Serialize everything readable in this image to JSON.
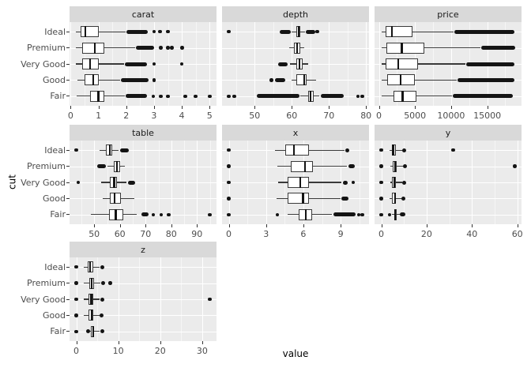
{
  "figure": {
    "xlabel": "value",
    "ylabel": "cut",
    "colors": {
      "strip_bg": "#d9d9d9",
      "panel_bg": "#ebebeb",
      "gridline": "#ffffff",
      "box_fill": "#ffffff",
      "box_line": "#3a3a3a",
      "point": "#141414",
      "tick_text": "#4d4d4d",
      "strip_text": "#1a1a1a"
    }
  },
  "chart_data": {
    "type": "boxplot",
    "title": "",
    "xlabel": "value",
    "ylabel": "cut",
    "legend": "none",
    "grid": "on",
    "categories": [
      "Ideal",
      "Premium",
      "Very Good",
      "Good",
      "Fair"
    ],
    "facets": [
      {
        "label": "carat",
        "row": 0,
        "col": 0,
        "axis": {
          "min": -0.04,
          "max": 5.25,
          "ticks": [
            0,
            1,
            2,
            3,
            4,
            5
          ]
        },
        "boxes": [
          {
            "cut": "Ideal",
            "whisker_low": 0.2,
            "q1": 0.35,
            "median": 0.54,
            "q3": 1.01,
            "whisker_high": 1.98,
            "outlier_bands": [
              [
                2.01,
                2.79
              ]
            ],
            "outliers": [
              3.0,
              3.22,
              3.5
            ]
          },
          {
            "cut": "Premium",
            "whisker_low": 0.2,
            "q1": 0.41,
            "median": 0.86,
            "q3": 1.2,
            "whisker_high": 2.32,
            "outlier_bands": [
              [
                2.36,
                3.01
              ]
            ],
            "outliers": [
              3.24,
              3.5,
              3.65,
              4.01
            ]
          },
          {
            "cut": "Very Good",
            "whisker_low": 0.2,
            "q1": 0.41,
            "median": 0.71,
            "q3": 1.02,
            "whisker_high": 1.93,
            "outlier_bands": [
              [
                1.96,
                2.74
              ]
            ],
            "outliers": [
              3.0,
              4.0
            ]
          },
          {
            "cut": "Good",
            "whisker_low": 0.23,
            "q1": 0.5,
            "median": 0.82,
            "q3": 1.01,
            "whisker_high": 1.77,
            "outlier_bands": [
              [
                1.8,
                2.8
              ]
            ],
            "outliers": [
              3.01
            ]
          },
          {
            "cut": "Fair",
            "whisker_low": 0.22,
            "q1": 0.7,
            "median": 1.0,
            "q3": 1.2,
            "whisker_high": 1.95,
            "outlier_bands": [
              [
                1.99,
                2.75
              ]
            ],
            "outliers": [
              2.98,
              3.25,
              3.5,
              4.13,
              4.5,
              5.01
            ]
          }
        ]
      },
      {
        "label": "depth",
        "row": 0,
        "col": 1,
        "axis": {
          "min": 41.2,
          "max": 80.8,
          "ticks": [
            50,
            60,
            70,
            80
          ]
        },
        "boxes": [
          {
            "cut": "Ideal",
            "whisker_low": 60.0,
            "q1": 61.3,
            "median": 61.8,
            "q3": 62.2,
            "whisker_high": 63.5,
            "outlier_bands": [
              [
                56.8,
                59.8
              ],
              [
                63.8,
                66.3
              ]
            ],
            "outliers": [
              43.0,
              66.9
            ]
          },
          {
            "cut": "Premium",
            "whisker_low": 59.3,
            "q1": 60.5,
            "median": 61.4,
            "q3": 62.2,
            "whisker_high": 63.4,
            "outlier_bands": [],
            "outliers": []
          },
          {
            "cut": "Very Good",
            "whisker_low": 59.4,
            "q1": 61.1,
            "median": 62.1,
            "q3": 62.9,
            "whisker_high": 64.4,
            "outlier_bands": [
              [
                56.4,
                58.8
              ]
            ],
            "outliers": []
          },
          {
            "cut": "Good",
            "whisker_low": 59.9,
            "q1": 61.3,
            "median": 63.4,
            "q3": 64.0,
            "whisker_high": 66.6,
            "outlier_bands": [
              [
                55.5,
                58.2
              ]
            ],
            "outliers": [
              54.5
            ]
          },
          {
            "cut": "Fair",
            "whisker_low": 62.2,
            "q1": 64.4,
            "median": 65.0,
            "q3": 65.9,
            "whisker_high": 67.3,
            "outlier_bands": [
              [
                50.5,
                62.0
              ],
              [
                67.7,
                74.0
              ]
            ],
            "outliers": [
              43.0,
              44.5,
              77.8,
              79.0
            ]
          }
        ]
      },
      {
        "label": "price",
        "row": 0,
        "col": 2,
        "axis": {
          "min": -600,
          "max": 19750,
          "ticks": [
            0,
            5000,
            10000,
            15000
          ]
        },
        "boxes": [
          {
            "cut": "Ideal",
            "whisker_low": 326,
            "q1": 878,
            "median": 1810,
            "q3": 4678,
            "whisker_high": 10300,
            "outlier_bands": [
              [
                10400,
                18800
              ]
            ],
            "outliers": []
          },
          {
            "cut": "Premium",
            "whisker_low": 326,
            "q1": 1046,
            "median": 3185,
            "q3": 6296,
            "whisker_high": 14100,
            "outlier_bands": [
              [
                14200,
                18823
              ]
            ],
            "outliers": []
          },
          {
            "cut": "Very Good",
            "whisker_low": 336,
            "q1": 912,
            "median": 2648,
            "q3": 5373,
            "whisker_high": 11950,
            "outlier_bands": [
              [
                12050,
                18818
              ]
            ],
            "outliers": []
          },
          {
            "cut": "Good",
            "whisker_low": 327,
            "q1": 1145,
            "median": 3050,
            "q3": 5028,
            "whisker_high": 10800,
            "outlier_bands": [
              [
                10900,
                18788
              ]
            ],
            "outliers": []
          },
          {
            "cut": "Fair",
            "whisker_low": 337,
            "q1": 2050,
            "median": 3282,
            "q3": 5206,
            "whisker_high": 10080,
            "outlier_bands": [
              [
                10180,
                18574
              ]
            ],
            "outliers": []
          }
        ]
      },
      {
        "label": "table",
        "row": 1,
        "col": 0,
        "axis": {
          "min": 40.4,
          "max": 97.6,
          "ticks": [
            50,
            60,
            70,
            80,
            90
          ]
        },
        "boxes": [
          {
            "cut": "Ideal",
            "whisker_low": 52.0,
            "q1": 54.5,
            "median": 56.0,
            "q3": 57.0,
            "whisker_high": 59.5,
            "outlier_bands": [
              [
                60.0,
                63.4
              ]
            ],
            "outliers": [
              43.0
            ]
          },
          {
            "cut": "Premium",
            "whisker_low": 55.2,
            "q1": 57.5,
            "median": 58.8,
            "q3": 60.0,
            "whisker_high": 61.8,
            "outlier_bands": [
              [
                51.0,
                54.6
              ]
            ],
            "outliers": []
          },
          {
            "cut": "Very Good",
            "whisker_low": 52.8,
            "q1": 56.0,
            "median": 57.8,
            "q3": 59.0,
            "whisker_high": 62.5,
            "outlier_bands": [
              [
                63.2,
                66.0
              ]
            ],
            "outliers": [
              43.8
            ]
          },
          {
            "cut": "Good",
            "whisker_low": 53.3,
            "q1": 56.0,
            "median": 58.0,
            "q3": 60.5,
            "whisker_high": 65.8,
            "outlier_bands": [],
            "outliers": []
          },
          {
            "cut": "Fair",
            "whisker_low": 48.6,
            "q1": 55.7,
            "median": 58.4,
            "q3": 61.3,
            "whisker_high": 66.4,
            "outlier_bands": [
              [
                68.5,
                71.3
              ]
            ],
            "outliers": [
              73,
              76,
              79,
              95
            ]
          }
        ]
      },
      {
        "label": "x",
        "row": 1,
        "col": 1,
        "axis": {
          "min": -0.54,
          "max": 11.28,
          "ticks": [
            0,
            3,
            6,
            9
          ]
        },
        "boxes": [
          {
            "cut": "Ideal",
            "whisker_low": 3.74,
            "q1": 4.54,
            "median": 5.25,
            "q3": 6.44,
            "whisker_high": 9.29,
            "outlier_bands": [
              [
                9.4,
                9.7
              ]
            ],
            "outliers": [
              0
            ]
          },
          {
            "cut": "Premium",
            "whisker_low": 3.9,
            "q1": 5.01,
            "median": 6.11,
            "q3": 6.8,
            "whisker_high": 9.49,
            "outlier_bands": [
              [
                9.6,
                10.15
              ]
            ],
            "outliers": [
              0
            ]
          },
          {
            "cut": "Very Good",
            "whisker_low": 3.94,
            "q1": 4.75,
            "median": 5.74,
            "q3": 6.47,
            "whisker_high": 9.05,
            "outlier_bands": [
              [
                9.15,
                9.55
              ]
            ],
            "outliers": [
              0,
              10.0
            ]
          },
          {
            "cut": "Good",
            "whisker_low": 3.85,
            "q1": 4.75,
            "median": 5.98,
            "q3": 6.44,
            "whisker_high": 8.97,
            "outlier_bands": [
              [
                9.05,
                9.65
              ]
            ],
            "outliers": [
              0
            ]
          },
          {
            "cut": "Fair",
            "whisker_low": 4.72,
            "q1": 5.63,
            "median": 6.18,
            "q3": 6.7,
            "whisker_high": 8.3,
            "outlier_bands": [
              [
                8.4,
                10.2
              ]
            ],
            "outliers": [
              0,
              3.9,
              10.45,
              10.74
            ]
          }
        ]
      },
      {
        "label": "y",
        "row": 1,
        "col": 2,
        "axis": {
          "min": -2.95,
          "max": 61.85,
          "ticks": [
            0,
            20,
            40,
            60
          ]
        },
        "boxes": [
          {
            "cut": "Ideal",
            "whisker_low": 3.68,
            "q1": 4.55,
            "median": 5.26,
            "q3": 6.44,
            "whisker_high": 9.25,
            "outlier_bands": [
              [
                9.3,
                10.0
              ]
            ],
            "outliers": [
              0,
              31.8
            ]
          },
          {
            "cut": "Premium",
            "whisker_low": 3.84,
            "q1": 4.96,
            "median": 6.06,
            "q3": 6.76,
            "whisker_high": 9.46,
            "outlier_bands": [
              [
                9.5,
                10.2
              ]
            ],
            "outliers": [
              0,
              58.9
            ]
          },
          {
            "cut": "Very Good",
            "whisker_low": 3.85,
            "q1": 4.77,
            "median": 5.77,
            "q3": 6.51,
            "whisker_high": 9.1,
            "outlier_bands": [
              [
                9.2,
                9.9
              ]
            ],
            "outliers": [
              0
            ]
          },
          {
            "cut": "Good",
            "whisker_low": 3.72,
            "q1": 4.79,
            "median": 5.99,
            "q3": 6.44,
            "whisker_high": 8.9,
            "outlier_bands": [
              [
                9.0,
                9.7
              ]
            ],
            "outliers": [
              0
            ]
          },
          {
            "cut": "Fair",
            "whisker_low": 4.6,
            "q1": 5.57,
            "median": 6.1,
            "q3": 6.64,
            "whisker_high": 8.2,
            "outlier_bands": [
              [
                8.3,
                10.5
              ]
            ],
            "outliers": [
              0,
              3.7
            ]
          }
        ]
      },
      {
        "label": "z",
        "row": 2,
        "col": 0,
        "axis": {
          "min": -1.6,
          "max": 33.4,
          "ticks": [
            0,
            10,
            20,
            30
          ]
        },
        "boxes": [
          {
            "cut": "Ideal",
            "whisker_low": 1.85,
            "q1": 2.8,
            "median": 3.23,
            "q3": 3.98,
            "whisker_high": 5.55,
            "outlier_bands": [
              [
                5.7,
                6.3
              ]
            ],
            "outliers": [
              0
            ]
          },
          {
            "cut": "Premium",
            "whisker_low": 1.8,
            "q1": 3.07,
            "median": 3.72,
            "q3": 4.16,
            "whisker_high": 5.75,
            "outlier_bands": [
              [
                5.9,
                6.9
              ]
            ],
            "outliers": [
              0,
              8.06
            ]
          },
          {
            "cut": "Very Good",
            "whisker_low": 1.75,
            "q1": 2.95,
            "median": 3.56,
            "q3": 4.02,
            "whisker_high": 5.6,
            "outlier_bands": [
              [
                5.75,
                6.4
              ]
            ],
            "outliers": [
              0,
              31.8
            ]
          },
          {
            "cut": "Good",
            "whisker_low": 1.7,
            "q1": 2.94,
            "median": 3.7,
            "q3": 4.0,
            "whisker_high": 5.5,
            "outlier_bands": [
              [
                5.6,
                6.3
              ]
            ],
            "outliers": [
              0
            ]
          },
          {
            "cut": "Fair",
            "whisker_low": 2.97,
            "q1": 3.41,
            "median": 3.97,
            "q3": 4.28,
            "whisker_high": 5.58,
            "outlier_bands": [
              [
                2.3,
                2.95
              ],
              [
                5.7,
                6.7
              ]
            ],
            "outliers": [
              0
            ]
          }
        ]
      }
    ]
  }
}
